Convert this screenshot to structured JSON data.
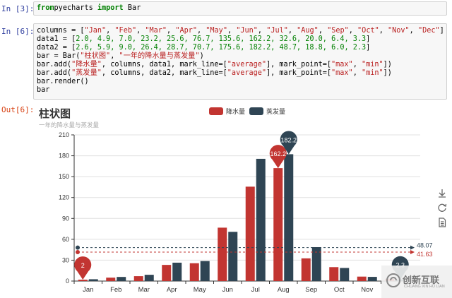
{
  "cells": {
    "in3": {
      "prompt": "In [3]:",
      "tokens": [
        [
          "kw",
          "from"
        ],
        [
          "",
          "pyecharts "
        ],
        [
          "kw",
          "import"
        ],
        [
          "",
          " Bar"
        ]
      ]
    },
    "in6": {
      "prompt": "In [6]:",
      "lines": [
        [
          [
            "",
            "columns = ["
          ],
          [
            "str",
            "\"Jan\""
          ],
          [
            "",
            ", "
          ],
          [
            "str",
            "\"Feb\""
          ],
          [
            "",
            ", "
          ],
          [
            "str",
            "\"Mar\""
          ],
          [
            "",
            ", "
          ],
          [
            "str",
            "\"Apr\""
          ],
          [
            "",
            ", "
          ],
          [
            "str",
            "\"May\""
          ],
          [
            "",
            ", "
          ],
          [
            "str",
            "\"Jun\""
          ],
          [
            "",
            ", "
          ],
          [
            "str",
            "\"Jul\""
          ],
          [
            "",
            ", "
          ],
          [
            "str",
            "\"Aug\""
          ],
          [
            "",
            ", "
          ],
          [
            "str",
            "\"Sep\""
          ],
          [
            "",
            ", "
          ],
          [
            "str",
            "\"Oct\""
          ],
          [
            "",
            ", "
          ],
          [
            "str",
            "\"Nov\""
          ],
          [
            "",
            ", "
          ],
          [
            "str",
            "\"Dec\""
          ],
          [
            "",
            "]"
          ]
        ],
        [
          [
            "",
            "data1 = ["
          ],
          [
            "num",
            "2.0, 4.9, 7.0, 23.2, 25.6, 76.7, 135.6, 162.2, 32.6, 20.0, 6.4, 3.3"
          ],
          [
            "",
            "]"
          ]
        ],
        [
          [
            "",
            "data2 = ["
          ],
          [
            "num",
            "2.6, 5.9, 9.0, 26.4, 28.7, 70.7, 175.6, 182.2, 48.7, 18.8, 6.0, 2.3"
          ],
          [
            "",
            "]"
          ]
        ],
        [
          [
            "",
            "bar = Bar("
          ],
          [
            "str",
            "\"柱状图\""
          ],
          [
            "",
            ", "
          ],
          [
            "str",
            "\"一年的降水量与蒸发量\""
          ],
          [
            "",
            ")"
          ]
        ],
        [
          [
            "",
            "bar.add("
          ],
          [
            "str",
            "\"降水量\""
          ],
          [
            "",
            ", columns, data1, mark_line=["
          ],
          [
            "str",
            "\"average\""
          ],
          [
            "",
            "], mark_point=["
          ],
          [
            "str",
            "\"max\""
          ],
          [
            "",
            ", "
          ],
          [
            "str",
            "\"min\""
          ],
          [
            "",
            "])"
          ]
        ],
        [
          [
            "",
            "bar.add("
          ],
          [
            "str",
            "\"蒸发量\""
          ],
          [
            "",
            ", columns, data2, mark_line=["
          ],
          [
            "str",
            "\"average\""
          ],
          [
            "",
            "], mark_point=["
          ],
          [
            "str",
            "\"max\""
          ],
          [
            "",
            ", "
          ],
          [
            "str",
            "\"min\""
          ],
          [
            "",
            "])"
          ]
        ],
        [
          [
            "",
            "bar.render()"
          ]
        ],
        [
          [
            "",
            "bar"
          ]
        ]
      ]
    },
    "out6": {
      "prompt": "Out[6]:"
    }
  },
  "colors": {
    "series1": "#c23531",
    "series2": "#2f4554",
    "axis": "#333333",
    "grid": "#e0e0e0"
  },
  "toolbox_icons": [
    "download-icon",
    "refresh-icon",
    "data-view-icon"
  ],
  "watermark": {
    "text": "创新互联",
    "subtext": "CHUANG XIN HU LIAN"
  },
  "chart_data": {
    "type": "bar",
    "title": "柱状图",
    "subtitle": "一年的降水量与蒸发量",
    "categories": [
      "Jan",
      "Feb",
      "Mar",
      "Apr",
      "May",
      "Jun",
      "Jul",
      "Aug",
      "Sep",
      "Oct",
      "Nov",
      "Dec"
    ],
    "visible_categories": [
      "Jan",
      "Feb",
      "Mar",
      "Apr",
      "May",
      "Jun",
      "Jul",
      "Aug",
      "Sep",
      "Oct",
      "Nov"
    ],
    "series": [
      {
        "name": "降水量",
        "values": [
          2.0,
          4.9,
          7.0,
          23.2,
          25.6,
          76.7,
          135.6,
          162.2,
          32.6,
          20.0,
          6.4,
          3.3
        ],
        "average": 41.63,
        "average_label": "41.63",
        "max_label": "162.2",
        "min_label": "2"
      },
      {
        "name": "蒸发量",
        "values": [
          2.6,
          5.9,
          9.0,
          26.4,
          28.7,
          70.7,
          175.6,
          182.2,
          48.7,
          18.8,
          6.0,
          2.3
        ],
        "average": 48.07,
        "average_label": "48.07",
        "max_label": "182.2",
        "min_label": "2.3"
      }
    ],
    "yticks": [
      0,
      30,
      60,
      90,
      120,
      150,
      180,
      210
    ],
    "ylim": [
      0,
      210
    ],
    "legend_position": "top-center",
    "grid": true
  }
}
